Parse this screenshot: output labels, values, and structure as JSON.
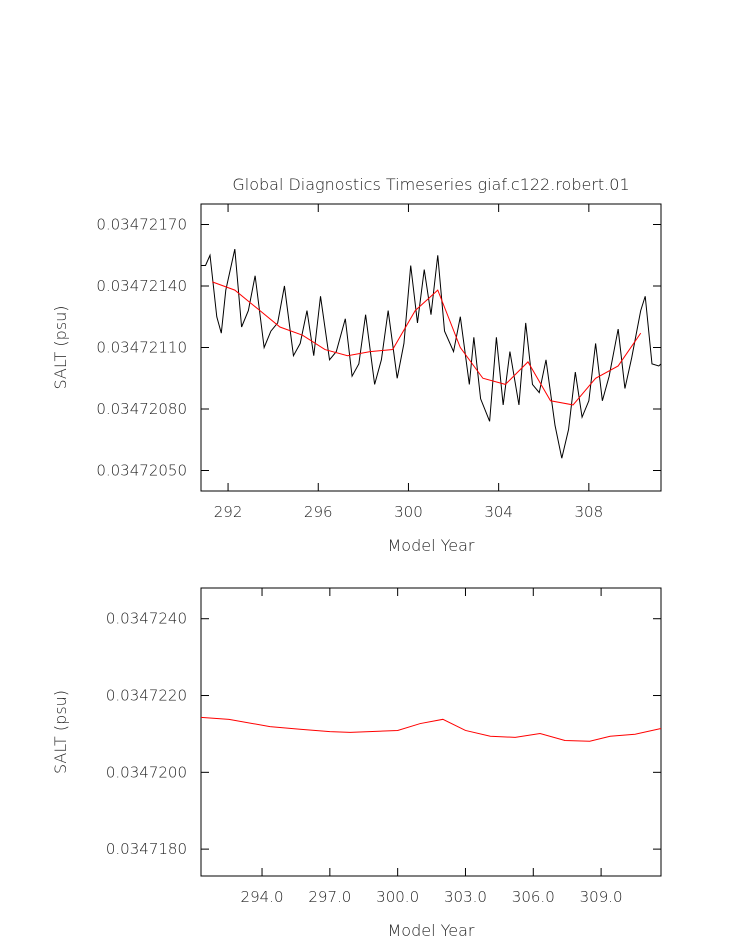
{
  "chart_data": [
    {
      "type": "line",
      "title": "Global Diagnostics Timeseries giaf.c122.robert.01",
      "xlabel": "Model Year",
      "ylabel": "SALT (psu)",
      "xlim": [
        290.8,
        311.2
      ],
      "ylim": [
        0.0347204,
        0.0347218
      ],
      "xticks": [
        292,
        296,
        300,
        304,
        308
      ],
      "yticks": [
        {
          "value": 0.0347205,
          "label": "0.03472050"
        },
        {
          "value": 0.0347208,
          "label": "0.03472080"
        },
        {
          "value": 0.0347211,
          "label": "0.03472110"
        },
        {
          "value": 0.0347214,
          "label": "0.03472140"
        },
        {
          "value": 0.0347217,
          "label": "0.03472170"
        }
      ],
      "series": [
        {
          "color": "#000000",
          "x": [
            290.8,
            291.0,
            291.2,
            291.5,
            291.7,
            291.9,
            292.3,
            292.6,
            292.9,
            293.2,
            293.6,
            293.9,
            294.2,
            294.5,
            294.9,
            295.2,
            295.5,
            295.8,
            296.1,
            296.5,
            296.8,
            297.2,
            297.5,
            297.8,
            298.1,
            298.5,
            298.8,
            299.1,
            299.5,
            299.8,
            300.1,
            300.4,
            300.7,
            301.0,
            301.3,
            301.6,
            302.0,
            302.3,
            302.7,
            302.9,
            303.2,
            303.6,
            303.9,
            304.2,
            304.5,
            304.9,
            305.2,
            305.5,
            305.8,
            306.1,
            306.5,
            306.8,
            307.1,
            307.4,
            307.7,
            308.0,
            308.3,
            308.6,
            308.9,
            309.3,
            309.6,
            309.9,
            310.3,
            310.5,
            310.8,
            311.1,
            311.2
          ],
          "values": [
            0.0347215,
            0.0347215,
            0.03472155,
            0.03472125,
            0.03472117,
            0.03472138,
            0.03472158,
            0.0347212,
            0.03472128,
            0.03472145,
            0.0347211,
            0.03472118,
            0.03472122,
            0.0347214,
            0.03472106,
            0.03472112,
            0.03472128,
            0.03472106,
            0.03472135,
            0.03472104,
            0.03472108,
            0.03472124,
            0.03472096,
            0.03472102,
            0.03472126,
            0.03472092,
            0.03472104,
            0.03472128,
            0.03472095,
            0.03472112,
            0.0347215,
            0.03472122,
            0.03472148,
            0.03472126,
            0.03472155,
            0.03472118,
            0.03472108,
            0.03472125,
            0.03472092,
            0.03472115,
            0.03472085,
            0.03472074,
            0.03472115,
            0.03472082,
            0.03472108,
            0.03472082,
            0.03472122,
            0.03472092,
            0.03472088,
            0.03472104,
            0.03472072,
            0.03472056,
            0.0347207,
            0.03472098,
            0.03472076,
            0.03472084,
            0.03472112,
            0.03472084,
            0.03472096,
            0.03472119,
            0.0347209,
            0.03472105,
            0.03472128,
            0.03472135,
            0.03472102,
            0.03472101,
            0.03472102
          ]
        },
        {
          "color": "#ff0000",
          "x": [
            291.3,
            292.3,
            293.3,
            294.3,
            295.3,
            296.3,
            297.3,
            298.3,
            299.3,
            300.3,
            301.3,
            302.3,
            303.3,
            304.3,
            305.3,
            306.3,
            307.3,
            308.3,
            309.3,
            310.3
          ],
          "values": [
            0.03472142,
            0.03472138,
            0.03472129,
            0.0347212,
            0.03472116,
            0.03472109,
            0.03472106,
            0.03472108,
            0.03472109,
            0.03472128,
            0.03472138,
            0.0347211,
            0.03472095,
            0.03472092,
            0.03472103,
            0.03472084,
            0.03472082,
            0.03472095,
            0.03472101,
            0.03472117
          ]
        }
      ]
    },
    {
      "type": "line",
      "xlabel": "Model Year",
      "ylabel": "SALT (psu)",
      "xlim": [
        291.3,
        311.65
      ],
      "ylim": [
        0.0347173,
        0.0347248
      ],
      "xticks": [
        {
          "value": 294,
          "label": "294.0"
        },
        {
          "value": 297,
          "label": "297.0"
        },
        {
          "value": 300,
          "label": "300.0"
        },
        {
          "value": 303,
          "label": "303.0"
        },
        {
          "value": 306,
          "label": "306.0"
        },
        {
          "value": 309,
          "label": "309.0"
        }
      ],
      "yticks": [
        {
          "value": 0.034718,
          "label": "0.0347180"
        },
        {
          "value": 0.03472,
          "label": "0.0347200"
        },
        {
          "value": 0.034722,
          "label": "0.0347220"
        },
        {
          "value": 0.034724,
          "label": "0.0347240"
        }
      ],
      "series": [
        {
          "color": "#ff0000",
          "x": [
            291.3,
            292.54,
            294.35,
            295.68,
            297.0,
            297.9,
            300.0,
            301.0,
            302.0,
            303.0,
            304.1,
            305.2,
            306.3,
            307.4,
            308.5,
            309.4,
            310.5,
            311.65
          ],
          "values": [
            0.03472143,
            0.03472138,
            0.03472119,
            0.03472112,
            0.03472106,
            0.03472104,
            0.03472109,
            0.03472127,
            0.03472138,
            0.03472109,
            0.03472094,
            0.03472091,
            0.03472101,
            0.03472083,
            0.03472081,
            0.03472094,
            0.03472099,
            0.03472114
          ]
        }
      ]
    }
  ]
}
